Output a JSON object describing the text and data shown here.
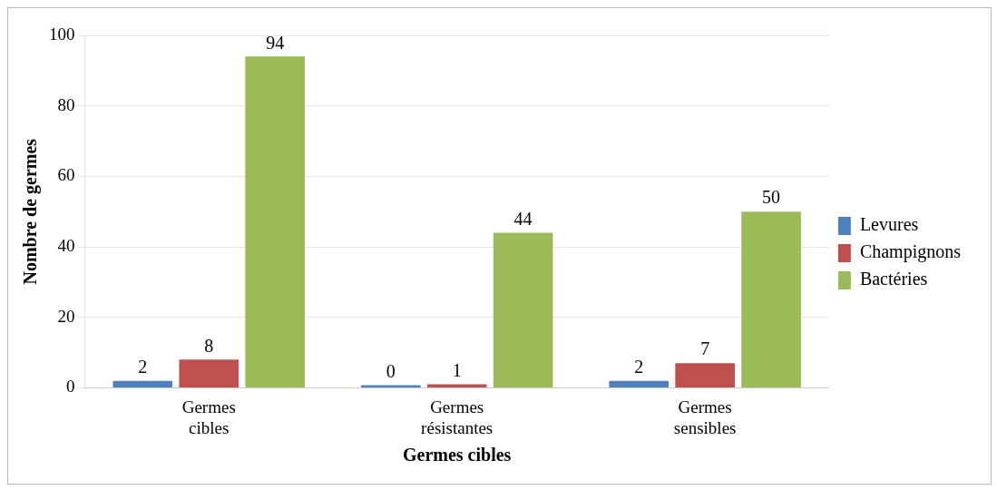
{
  "chart_data": {
    "type": "bar",
    "xlabel": "Germes cibles",
    "ylabel": "Nombre de germes",
    "categories": [
      "Germes cibles",
      "Germes résistantes",
      "Germes sensibles"
    ],
    "series": [
      {
        "name": "Levures",
        "color": "#4f81bd",
        "values": [
          2,
          0,
          2
        ]
      },
      {
        "name": "Champignons",
        "color": "#c0504d",
        "values": [
          8,
          1,
          7
        ]
      },
      {
        "name": "Bactéries",
        "color": "#9bbb59",
        "values": [
          94,
          44,
          50
        ]
      }
    ],
    "ylim": [
      0,
      100
    ],
    "yticks": [
      0,
      20,
      40,
      60,
      80,
      100
    ],
    "grid": "y",
    "legend": "right",
    "data_labels": true
  }
}
